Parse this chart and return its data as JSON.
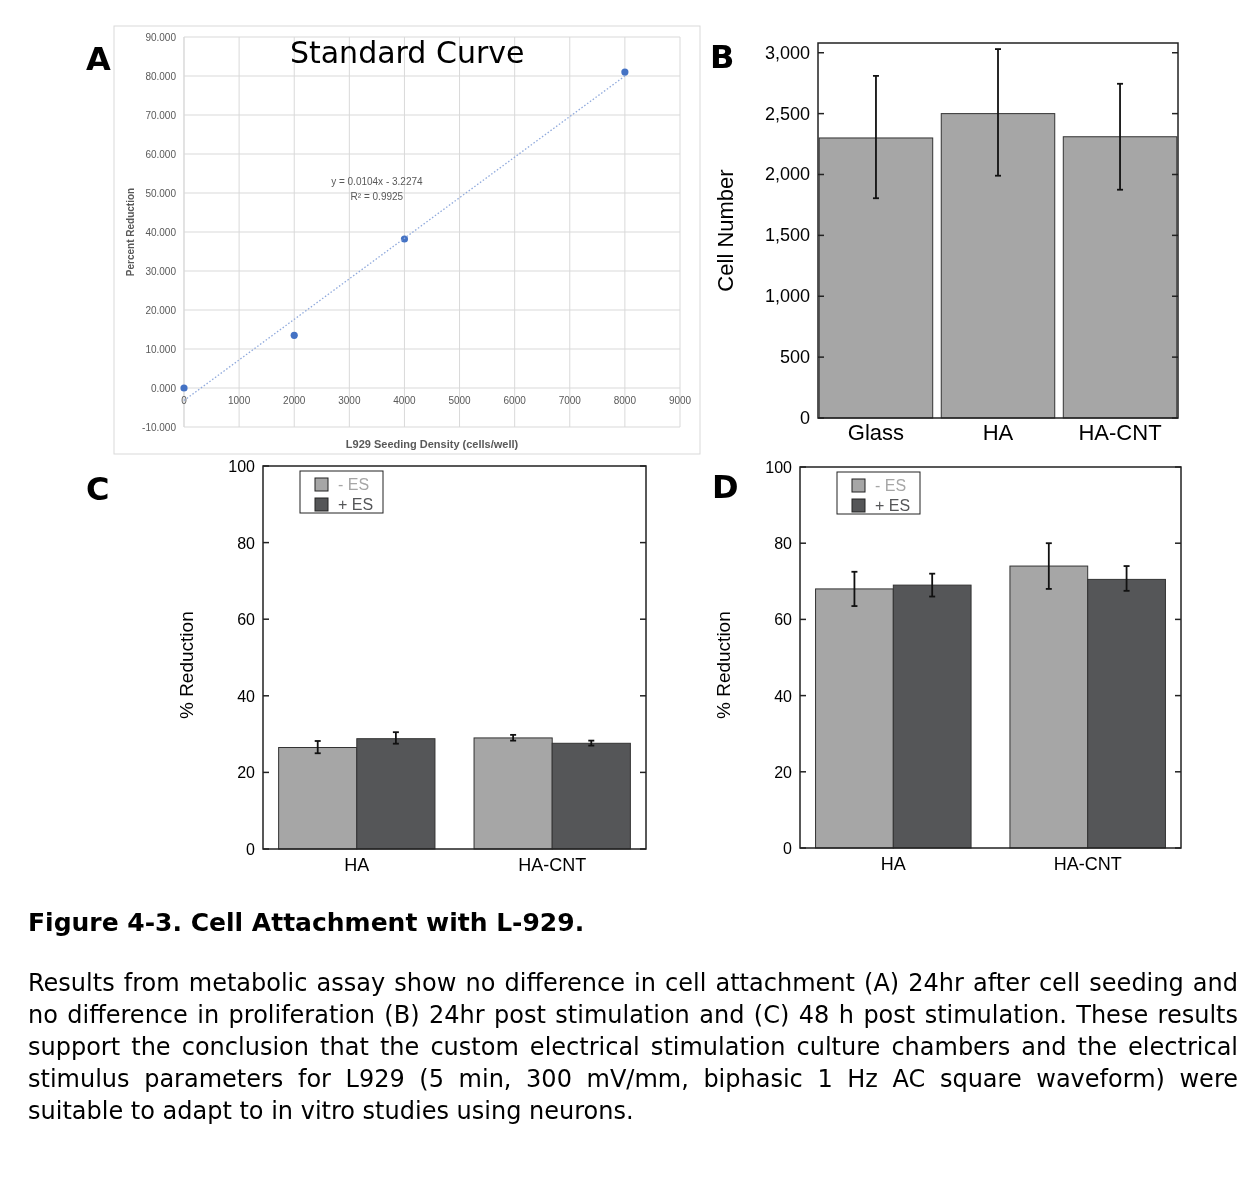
{
  "chart_data": [
    {
      "type": "scatter",
      "title": "Standard Curve",
      "xlabel": "L929 Seeding Density (cells/well)",
      "ylabel": "Percent Reduction",
      "annotations": [
        "A",
        "y = 0.0104x - 3.2274",
        "R² = 0.9925"
      ],
      "xlim": [
        0,
        9000
      ],
      "xticks": [
        0,
        1000,
        2000,
        3000,
        4000,
        5000,
        6000,
        7000,
        8000,
        9000
      ],
      "ylim": [
        -10,
        90
      ],
      "yticks": [
        {
          "value": -10,
          "label": "-10.000"
        },
        {
          "value": 0,
          "label": "0.000"
        },
        {
          "value": 10,
          "label": "10.000"
        },
        {
          "value": 20,
          "label": "20.000"
        },
        {
          "value": 30,
          "label": "30.000"
        },
        {
          "value": 40,
          "label": "40.000"
        },
        {
          "value": 50,
          "label": "50.000"
        },
        {
          "value": 60,
          "label": "60.000"
        },
        {
          "value": 70,
          "label": "70.000"
        },
        {
          "value": 80,
          "label": "80.000"
        },
        {
          "value": 90,
          "label": "90.000"
        }
      ],
      "grid": true,
      "marker": "circle",
      "series": [
        {
          "type": "scatter",
          "color": "#4472c4",
          "x": [
            0,
            2000,
            4000,
            8000
          ],
          "values": [
            0,
            13.5,
            38.2,
            81
          ]
        },
        {
          "type": "line",
          "color": "#8fa9dc",
          "line_style": "dotted",
          "marker": "none",
          "x": [
            0,
            8000
          ],
          "values": [
            -3.2,
            80
          ]
        }
      ]
    },
    {
      "type": "bar",
      "ylabel": "Cell Number",
      "annotations": [
        "B"
      ],
      "categories": [
        "Glass",
        "HA",
        "HA-CNT"
      ],
      "ylim": [
        0,
        3080
      ],
      "yticks": [
        0,
        {
          "value": 500,
          "label": "500"
        },
        {
          "value": 1000,
          "label": "1,000"
        },
        {
          "value": 1500,
          "label": "1,500"
        },
        {
          "value": 2000,
          "label": "2,000"
        },
        {
          "value": 2500,
          "label": "2,500"
        },
        {
          "value": 3000,
          "label": "3,000"
        }
      ],
      "series": [
        {
          "color": "#a6a6a6",
          "values": [
            2300,
            2500,
            2310
          ],
          "errors": [
            [
              1805,
              2810
            ],
            [
              1990,
              3030
            ],
            [
              1875,
              2745
            ]
          ]
        }
      ]
    },
    {
      "type": "bar",
      "ylabel": "% Reduction",
      "annotations": [
        "C"
      ],
      "categories": [
        "HA",
        "HA-CNT"
      ],
      "legend": "top left",
      "ylim": [
        0,
        100
      ],
      "yticks": [
        0,
        20,
        40,
        60,
        80,
        100
      ],
      "series": [
        {
          "name": "- ES",
          "color": "#a6a6a6",
          "values": [
            26.5,
            29
          ],
          "errors": [
            [
              25,
              28.2
            ],
            [
              28.3,
              29.8
            ]
          ]
        },
        {
          "name": "+ ES",
          "color": "#555658",
          "values": [
            28.8,
            27.6
          ],
          "errors": [
            [
              27.5,
              30.5
            ],
            [
              27,
              28.3
            ]
          ]
        }
      ]
    },
    {
      "type": "bar",
      "ylabel": "% Reduction",
      "annotations": [
        "D",
        "Figure 4-3. Cell Attachment with L-929.",
        "Results from metabolic assay show no difference in cell attachment (A) 24hr after cell seeding and no difference in proliferation (B) 24hr post stimulation and (C) 48 h post stimulation. These results support the conclusion that the custom electrical stimulation culture chambers and the electrical stimulus parameters for L929 (5 min, 300 mV/mm, biphasic 1 Hz AC square waveform) were suitable to adapt to in vitro studies using neurons."
      ],
      "categories": [
        "HA",
        "HA-CNT"
      ],
      "legend": "top left",
      "ylim": [
        0,
        100
      ],
      "yticks": [
        0,
        20,
        40,
        60,
        80,
        100
      ],
      "series": [
        {
          "name": "- ES",
          "color": "#a6a6a6",
          "values": [
            68,
            74
          ],
          "errors": [
            [
              63.5,
              72.5
            ],
            [
              68,
              80
            ]
          ]
        },
        {
          "name": "+ ES",
          "color": "#555658",
          "values": [
            69,
            70.5
          ],
          "errors": [
            [
              66,
              72
            ],
            [
              67.5,
              74
            ]
          ]
        }
      ]
    }
  ]
}
